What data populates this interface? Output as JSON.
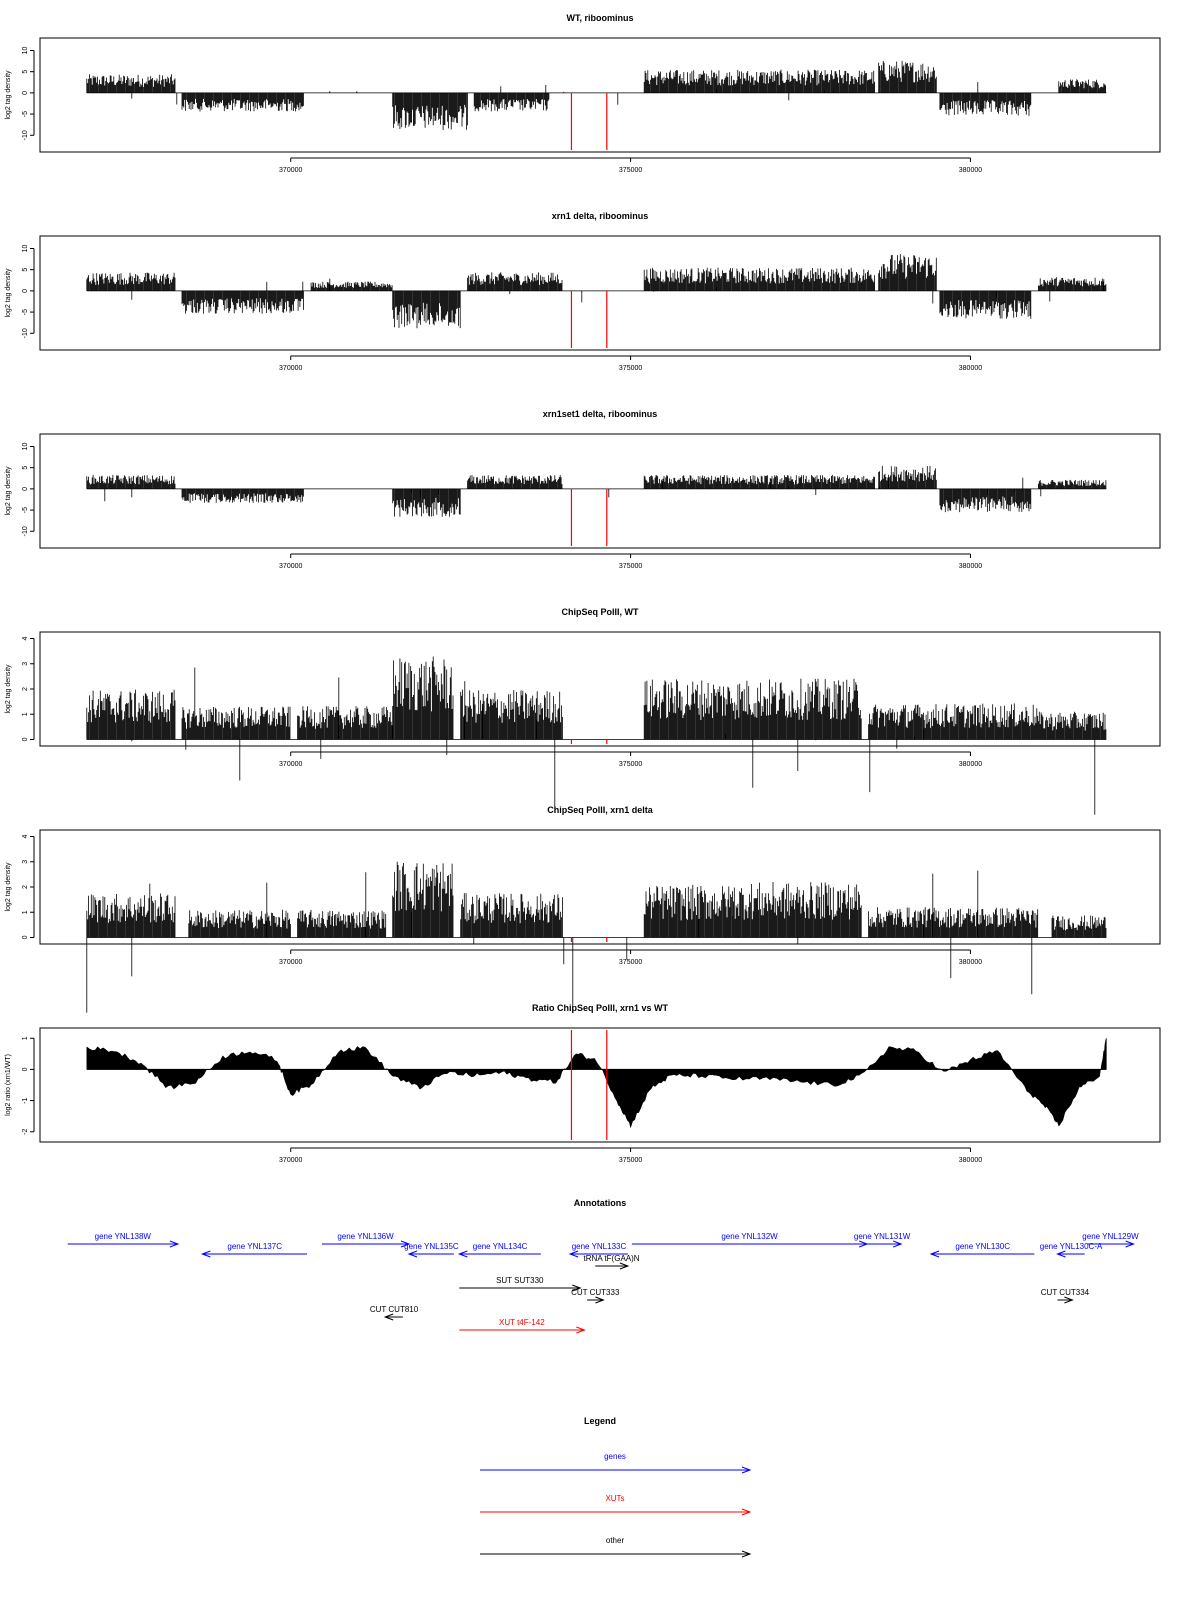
{
  "chart_data": [
    {
      "type": "bar",
      "title": "WT, riboominus",
      "ylabel": "log2 tag density",
      "xlim": [
        366900,
        382200
      ],
      "ylim": [
        -13,
        12
      ],
      "yticks": [
        -10,
        -5,
        0,
        5,
        10
      ],
      "xticks": [
        370000,
        375000,
        380000
      ],
      "markers": [
        374130,
        374650
      ],
      "series": [
        {
          "segments": [
            {
              "x": [
                367000,
                368300
              ],
              "y": 4
            },
            {
              "x": [
                368400,
                370200
              ],
              "y": -4
            },
            {
              "x": [
                371500,
                372600
              ],
              "y": -8
            },
            {
              "x": [
                372700,
                373800
              ],
              "y": -4
            },
            {
              "x": [
                375200,
                378600
              ],
              "y": 5
            },
            {
              "x": [
                378650,
                379500
              ],
              "y": 7
            },
            {
              "x": [
                379550,
                380900
              ],
              "y": -5
            },
            {
              "x": [
                381300,
                382000
              ],
              "y": 3
            }
          ]
        }
      ]
    },
    {
      "type": "bar",
      "title": "xrn1 delta, riboominus",
      "ylabel": "log2 tag density",
      "xlim": [
        366900,
        382200
      ],
      "ylim": [
        -13,
        12
      ],
      "yticks": [
        -10,
        -5,
        0,
        5,
        10
      ],
      "xticks": [
        370000,
        375000,
        380000
      ],
      "markers": [
        374130,
        374650
      ],
      "series": [
        {
          "segments": [
            {
              "x": [
                367000,
                368300
              ],
              "y": 4
            },
            {
              "x": [
                368400,
                370200
              ],
              "y": -5
            },
            {
              "x": [
                370300,
                371500
              ],
              "y": 2
            },
            {
              "x": [
                371500,
                372500
              ],
              "y": -8
            },
            {
              "x": [
                372600,
                374000
              ],
              "y": 4
            },
            {
              "x": [
                375200,
                378600
              ],
              "y": 5
            },
            {
              "x": [
                378650,
                379500
              ],
              "y": 8
            },
            {
              "x": [
                379550,
                380900
              ],
              "y": -6
            },
            {
              "x": [
                381000,
                382000
              ],
              "y": 3
            }
          ]
        }
      ]
    },
    {
      "type": "bar",
      "title": "xrn1set1 delta, riboominus",
      "ylabel": "log2 tag density",
      "xlim": [
        366900,
        382200
      ],
      "ylim": [
        -13,
        12
      ],
      "yticks": [
        -10,
        -5,
        0,
        5,
        10
      ],
      "xticks": [
        370000,
        375000,
        380000
      ],
      "markers": [
        374130,
        374650
      ],
      "series": [
        {
          "segments": [
            {
              "x": [
                367000,
                368300
              ],
              "y": 3
            },
            {
              "x": [
                368400,
                370200
              ],
              "y": -3
            },
            {
              "x": [
                371500,
                372500
              ],
              "y": -6
            },
            {
              "x": [
                372600,
                374000
              ],
              "y": 3
            },
            {
              "x": [
                375200,
                378600
              ],
              "y": 3
            },
            {
              "x": [
                378650,
                379500
              ],
              "y": 5
            },
            {
              "x": [
                379550,
                380900
              ],
              "y": -5
            },
            {
              "x": [
                381000,
                382000
              ],
              "y": 2
            }
          ]
        }
      ]
    },
    {
      "type": "bar",
      "title": "ChipSeq PolII, WT",
      "ylabel": "log2 tag density",
      "xlim": [
        366900,
        382200
      ],
      "ylim": [
        -0.1,
        4.1
      ],
      "yticks": [
        0,
        1,
        2,
        3,
        4
      ],
      "xticks": [
        370000,
        375000,
        380000
      ],
      "markers": [
        374130,
        374650
      ],
      "series": [
        {
          "segments": [
            {
              "x": [
                367000,
                368300
              ],
              "y": 1.8
            },
            {
              "x": [
                368400,
                370000
              ],
              "y": 1.2
            },
            {
              "x": [
                370100,
                371500
              ],
              "y": 1.2
            },
            {
              "x": [
                371500,
                372400
              ],
              "y": 3.0
            },
            {
              "x": [
                372500,
                374000
              ],
              "y": 1.8
            },
            {
              "x": [
                375200,
                376500
              ],
              "y": 2.2
            },
            {
              "x": [
                376500,
                378400
              ],
              "y": 2.2
            },
            {
              "x": [
                378500,
                381000
              ],
              "y": 1.3
            },
            {
              "x": [
                381000,
                382000
              ],
              "y": 1.0
            }
          ]
        }
      ]
    },
    {
      "type": "bar",
      "title": "ChipSeq PolII, xrn1 delta",
      "ylabel": "log2 tag density",
      "xlim": [
        366900,
        382200
      ],
      "ylim": [
        -0.1,
        4.1
      ],
      "yticks": [
        0,
        1,
        2,
        3,
        4
      ],
      "xticks": [
        370000,
        375000,
        380000
      ],
      "markers": [
        374130,
        374650
      ],
      "series": [
        {
          "segments": [
            {
              "x": [
                367000,
                368300
              ],
              "y": 1.6
            },
            {
              "x": [
                368500,
                370000
              ],
              "y": 1.0
            },
            {
              "x": [
                370100,
                371400
              ],
              "y": 1.0
            },
            {
              "x": [
                371500,
                372400
              ],
              "y": 2.8
            },
            {
              "x": [
                372500,
                374000
              ],
              "y": 1.6
            },
            {
              "x": [
                375200,
                376500
              ],
              "y": 1.9
            },
            {
              "x": [
                376500,
                378400
              ],
              "y": 2.0
            },
            {
              "x": [
                378500,
                381000
              ],
              "y": 1.1
            },
            {
              "x": [
                381200,
                382000
              ],
              "y": 0.8
            }
          ]
        }
      ]
    },
    {
      "type": "area",
      "title": "Ratio ChipSeq PolII, xrn1 vs WT",
      "ylabel": "log2 ratio (xrn1/WT)",
      "xlim": [
        366900,
        382200
      ],
      "ylim": [
        -2.2,
        1.2
      ],
      "yticks": [
        -2.0,
        -1.0,
        0.0,
        1.0
      ],
      "xticks": [
        370000,
        375000,
        380000
      ],
      "markers": [
        374130,
        374650
      ],
      "series": [
        {
          "x": [
            367000,
            367400,
            367800,
            368200,
            368600,
            369000,
            369400,
            369800,
            370000,
            370300,
            370700,
            371100,
            371500,
            371900,
            372300,
            372700,
            373100,
            373500,
            373900,
            374200,
            374500,
            374800,
            375000,
            375300,
            375600,
            376000,
            376500,
            377000,
            377500,
            378000,
            378400,
            378800,
            379200,
            379600,
            380000,
            380400,
            380800,
            381100,
            381300,
            381600,
            381900,
            382000
          ],
          "y": [
            0.7,
            0.6,
            0.2,
            -0.6,
            -0.4,
            0.4,
            0.6,
            0.3,
            -0.8,
            -0.5,
            0.6,
            0.7,
            -0.2,
            -0.6,
            -0.1,
            -0.2,
            -0.1,
            -0.3,
            -0.4,
            0.5,
            0.3,
            -1.0,
            -1.8,
            -0.6,
            -0.2,
            -0.2,
            -0.3,
            -0.3,
            -0.4,
            -0.5,
            -0.2,
            0.7,
            0.6,
            -0.1,
            0.3,
            0.6,
            -0.6,
            -1.2,
            -1.8,
            -0.6,
            -0.2,
            1.0
          ]
        }
      ]
    }
  ],
  "annotations": {
    "title": "Annotations",
    "xlim": [
      366900,
      382200
    ],
    "items": [
      {
        "label": "gene YNL138W",
        "start": 366720,
        "end": 368340,
        "strand": "+",
        "color": "#0000ff",
        "row": 0
      },
      {
        "label": "gene YNL137C",
        "start": 368700,
        "end": 370240,
        "strand": "-",
        "color": "#0000ff",
        "row": 1
      },
      {
        "label": "gene YNL136W",
        "start": 370460,
        "end": 371740,
        "strand": "+",
        "color": "#0000ff",
        "row": 0
      },
      {
        "label": "gene YNL135C",
        "start": 371740,
        "end": 372400,
        "strand": "-",
        "color": "#0000ff",
        "row": 1
      },
      {
        "label": "gene YNL134C",
        "start": 372480,
        "end": 373680,
        "strand": "-",
        "color": "#0000ff",
        "row": 1
      },
      {
        "label": "gene YNL133C",
        "start": 374110,
        "end": 374960,
        "strand": "-",
        "color": "#0000ff",
        "row": 1
      },
      {
        "label": "tRNA tF(GAA)N",
        "start": 374480,
        "end": 374960,
        "strand": "+",
        "color": "#000000",
        "row": 2
      },
      {
        "label": "gene YNL132W",
        "start": 375020,
        "end": 378480,
        "strand": "+",
        "color": "#0000ff",
        "row": 0
      },
      {
        "label": "gene YNL131W",
        "start": 378420,
        "end": 378980,
        "strand": "+",
        "color": "#0000ff",
        "row": 0
      },
      {
        "label": "gene YNL130C",
        "start": 379420,
        "end": 380940,
        "strand": "-",
        "color": "#0000ff",
        "row": 1
      },
      {
        "label": "gene YNL130C-A",
        "start": 381280,
        "end": 381680,
        "strand": "-",
        "color": "#0000ff",
        "row": 1
      },
      {
        "label": "gene YNL129W",
        "start": 381720,
        "end": 382400,
        "strand": "+",
        "color": "#0000ff",
        "row": 0
      },
      {
        "label": "SUT SUT330",
        "start": 372480,
        "end": 374260,
        "strand": "+",
        "color": "#000000",
        "row": 3
      },
      {
        "label": "CUT CUT333",
        "start": 374360,
        "end": 374600,
        "strand": "+",
        "color": "#000000",
        "row": 4
      },
      {
        "label": "CUT CUT334",
        "start": 381280,
        "end": 381500,
        "strand": "+",
        "color": "#000000",
        "row": 4
      },
      {
        "label": "CUT CUT810",
        "start": 371390,
        "end": 371650,
        "strand": "-",
        "color": "#000000",
        "row": 5
      },
      {
        "label": "XUT t4F-142",
        "start": 372480,
        "end": 374320,
        "strand": "+",
        "color": "#ff0000",
        "row": 6
      }
    ]
  },
  "legend": {
    "title": "Legend",
    "items": [
      {
        "label": "genes",
        "color": "#0000ff"
      },
      {
        "label": "XUTs",
        "color": "#ff0000"
      },
      {
        "label": "other",
        "color": "#000000"
      }
    ]
  },
  "colors": {
    "marker": "#ff0000",
    "data": "#000000",
    "frame": "#000000"
  }
}
